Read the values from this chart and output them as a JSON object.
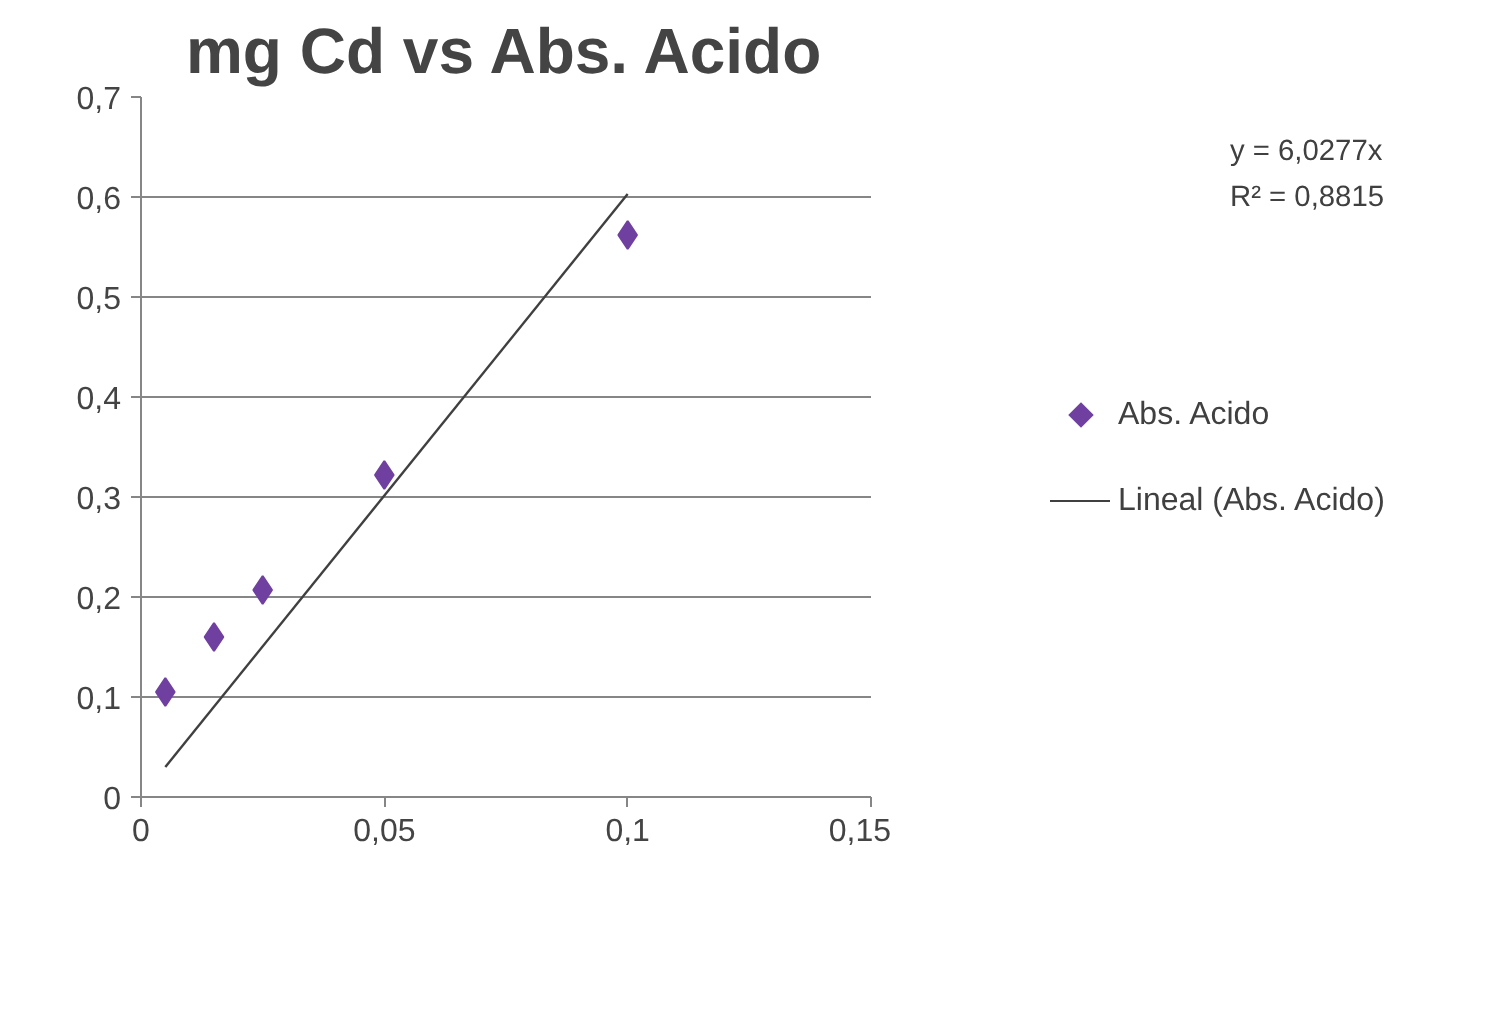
{
  "chart_data": {
    "type": "scatter",
    "title": "mg Cd vs Abs. Acido",
    "series": [
      {
        "name": "Abs. Acido",
        "color": "#7040a0",
        "marker": "diamond",
        "x": [
          0.005,
          0.015,
          0.025,
          0.05,
          0.1
        ],
        "values": [
          0.105,
          0.16,
          0.207,
          0.322,
          0.562
        ]
      },
      {
        "name": "Lineal (Abs. Acido)",
        "type": "line",
        "color": "#404040",
        "line_style": "solid",
        "x": [
          0.005,
          0.1
        ],
        "values": [
          0.03,
          0.603
        ]
      }
    ],
    "xlim": [
      0,
      0.15
    ],
    "ylim": [
      0,
      0.7
    ],
    "xticks": [
      0,
      {
        "value": 0.05,
        "label": "0,05"
      },
      {
        "value": 0.1,
        "label": "0,1"
      },
      {
        "value": 0.15,
        "label": "0,15"
      }
    ],
    "yticks": [
      0,
      {
        "value": 0.1,
        "label": "0,1"
      },
      {
        "value": 0.2,
        "label": "0,2"
      },
      {
        "value": 0.3,
        "label": "0,3"
      },
      {
        "value": 0.4,
        "label": "0,4"
      },
      {
        "value": 0.5,
        "label": "0,5"
      },
      {
        "value": 0.6,
        "label": "0,6"
      },
      {
        "value": 0.7,
        "label": "0,7"
      }
    ],
    "grid": "y",
    "legend": "right",
    "annotations": [
      "y = 6,0277x",
      "R² = 0,8815"
    ]
  }
}
